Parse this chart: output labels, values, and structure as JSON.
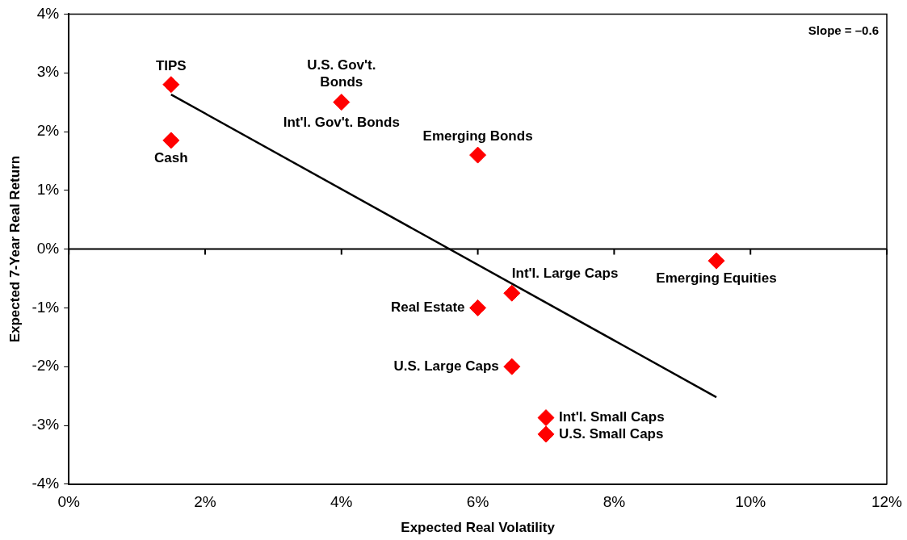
{
  "chart_data": {
    "type": "scatter",
    "xlabel": "Expected Real Volatility",
    "ylabel": "Expected 7-Year Real Return",
    "xlim": [
      0,
      12
    ],
    "ylim": [
      -4,
      4
    ],
    "xticks": [
      {
        "value": 0,
        "label": "0%"
      },
      {
        "value": 2,
        "label": "2%"
      },
      {
        "value": 4,
        "label": "4%"
      },
      {
        "value": 6,
        "label": "6%"
      },
      {
        "value": 8,
        "label": "8%"
      },
      {
        "value": 10,
        "label": "10%"
      },
      {
        "value": 12,
        "label": "12%"
      }
    ],
    "yticks": [
      {
        "value": -4,
        "label": "-4%"
      },
      {
        "value": -3,
        "label": "-3%"
      },
      {
        "value": -2,
        "label": "-2%"
      },
      {
        "value": -1,
        "label": "-1%"
      },
      {
        "value": 0,
        "label": "0%"
      },
      {
        "value": 1,
        "label": "1%"
      },
      {
        "value": 2,
        "label": "2%"
      },
      {
        "value": 3,
        "label": "3%"
      },
      {
        "value": 4,
        "label": "4%"
      }
    ],
    "grid": false,
    "legend": false,
    "marker": "diamond",
    "ref_lines": [
      {
        "axis": "y",
        "value": 0,
        "color": "#000000"
      }
    ],
    "series": [
      {
        "name": "TIPS",
        "color": "#ff0000",
        "x": [
          1.5
        ],
        "values": [
          2.8
        ]
      },
      {
        "name": "Cash",
        "color": "#ff0000",
        "x": [
          1.5
        ],
        "values": [
          1.85
        ]
      },
      {
        "name": "U.S. Gov't. Bonds",
        "color": "#ff0000",
        "x": [
          4
        ],
        "values": [
          2.5
        ]
      },
      {
        "name": "Emerging Bonds",
        "color": "#ff0000",
        "x": [
          6
        ],
        "values": [
          1.6
        ]
      },
      {
        "name": "Emerging Equities",
        "color": "#ff0000",
        "x": [
          9.5
        ],
        "values": [
          -0.2
        ]
      },
      {
        "name": "Int'l. Large Caps",
        "color": "#ff0000",
        "x": [
          6.5
        ],
        "values": [
          -0.75
        ]
      },
      {
        "name": "Real Estate",
        "color": "#ff0000",
        "x": [
          6
        ],
        "values": [
          -1
        ]
      },
      {
        "name": "U.S. Large Caps",
        "color": "#ff0000",
        "x": [
          6.5
        ],
        "values": [
          -2
        ]
      },
      {
        "name": "Int'l. Small Caps",
        "color": "#ff0000",
        "x": [
          7
        ],
        "values": [
          -2.87
        ]
      },
      {
        "name": "U.S. Small Caps",
        "color": "#ff0000",
        "x": [
          7
        ],
        "values": [
          -3.15
        ]
      },
      {
        "type": "line",
        "color": "#000000",
        "x": [
          1.5,
          9.5
        ],
        "values": [
          2.63,
          -2.52
        ],
        "marker": "none"
      }
    ],
    "annotations": [
      {
        "text": "Int'l. Gov't. Bonds",
        "x": 4,
        "y": 2.5
      },
      "Slope = –0.6"
    ]
  }
}
